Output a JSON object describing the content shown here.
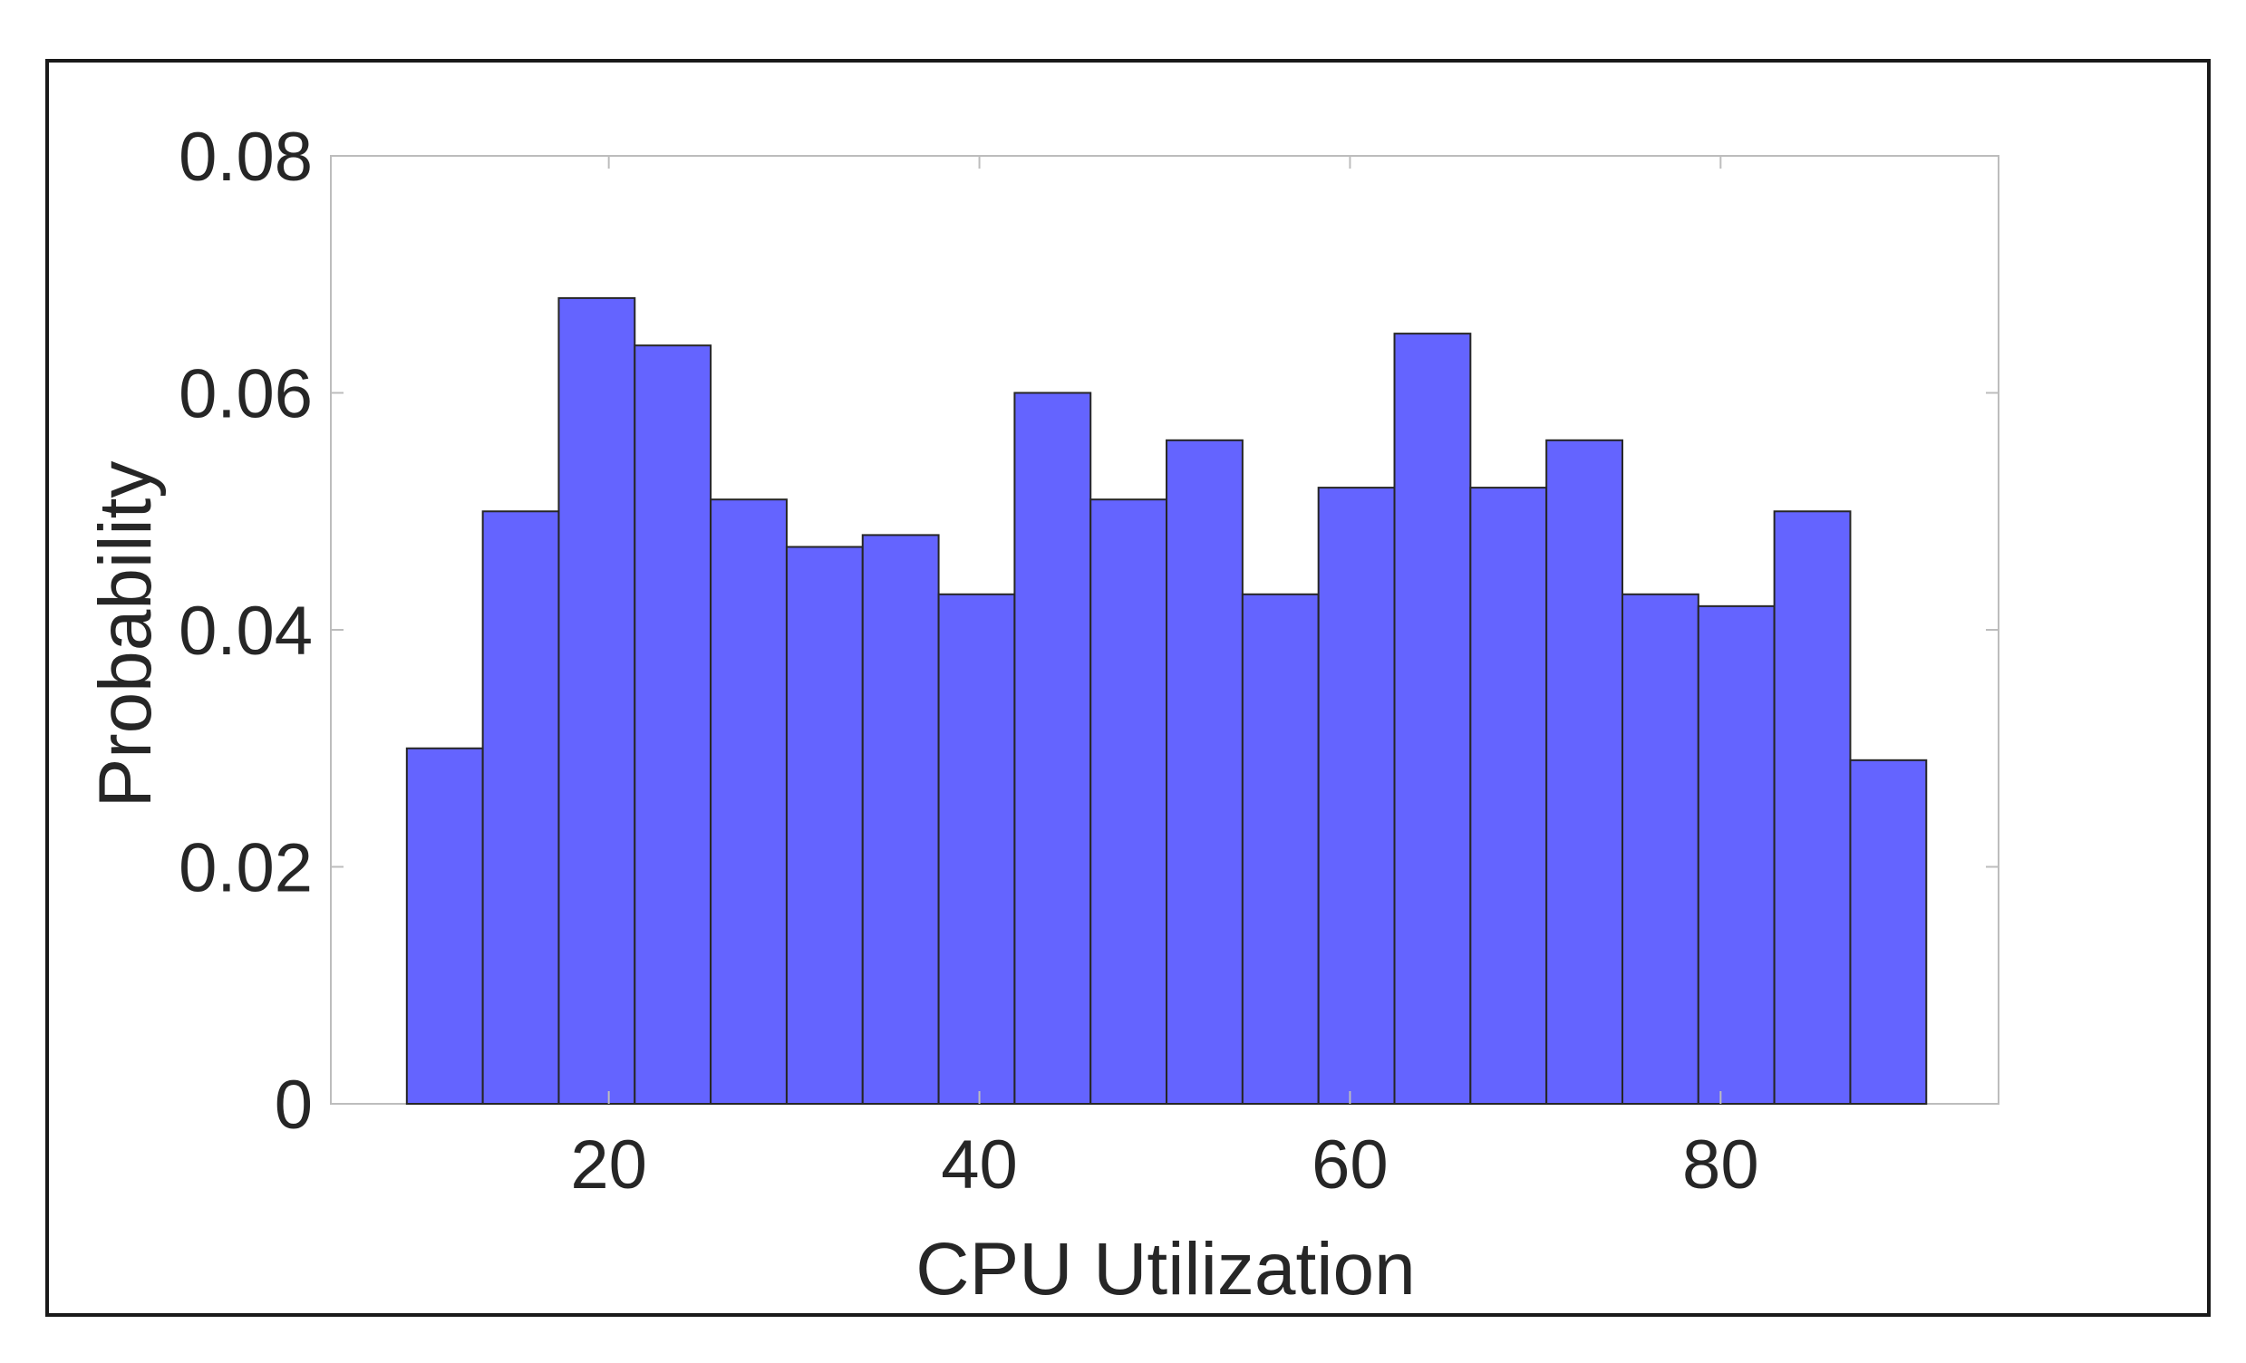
{
  "chart_data": {
    "type": "bar",
    "variant": "histogram",
    "xlabel": "CPU Utilization",
    "ylabel": "Probability",
    "xlim": [
      5,
      95
    ],
    "ylim": [
      0,
      0.08
    ],
    "xticks": [
      20,
      40,
      60,
      80
    ],
    "yticks": [
      0,
      0.02,
      0.04,
      0.06,
      0.08
    ],
    "xtick_labels": [
      "20",
      "40",
      "60",
      "80"
    ],
    "ytick_labels": [
      "0",
      "0.02",
      "0.04",
      "0.06",
      "0.08"
    ],
    "bin_edges": [
      9.1,
      13.2,
      17.3,
      21.4,
      25.5,
      29.6,
      33.7,
      37.8,
      41.9,
      46.0,
      50.1,
      54.2,
      58.3,
      62.4,
      66.5,
      70.6,
      74.7,
      78.8,
      82.9,
      87.0,
      91.1
    ],
    "values": [
      0.03,
      0.05,
      0.068,
      0.064,
      0.051,
      0.047,
      0.048,
      0.043,
      0.06,
      0.051,
      0.056,
      0.043,
      0.052,
      0.065,
      0.052,
      0.056,
      0.043,
      0.042,
      0.05,
      0.029
    ],
    "bar_color": "#6464ff",
    "bar_edge_color": "#262626",
    "axis_color": "#bdbdbd",
    "grid": false,
    "frame": true
  }
}
